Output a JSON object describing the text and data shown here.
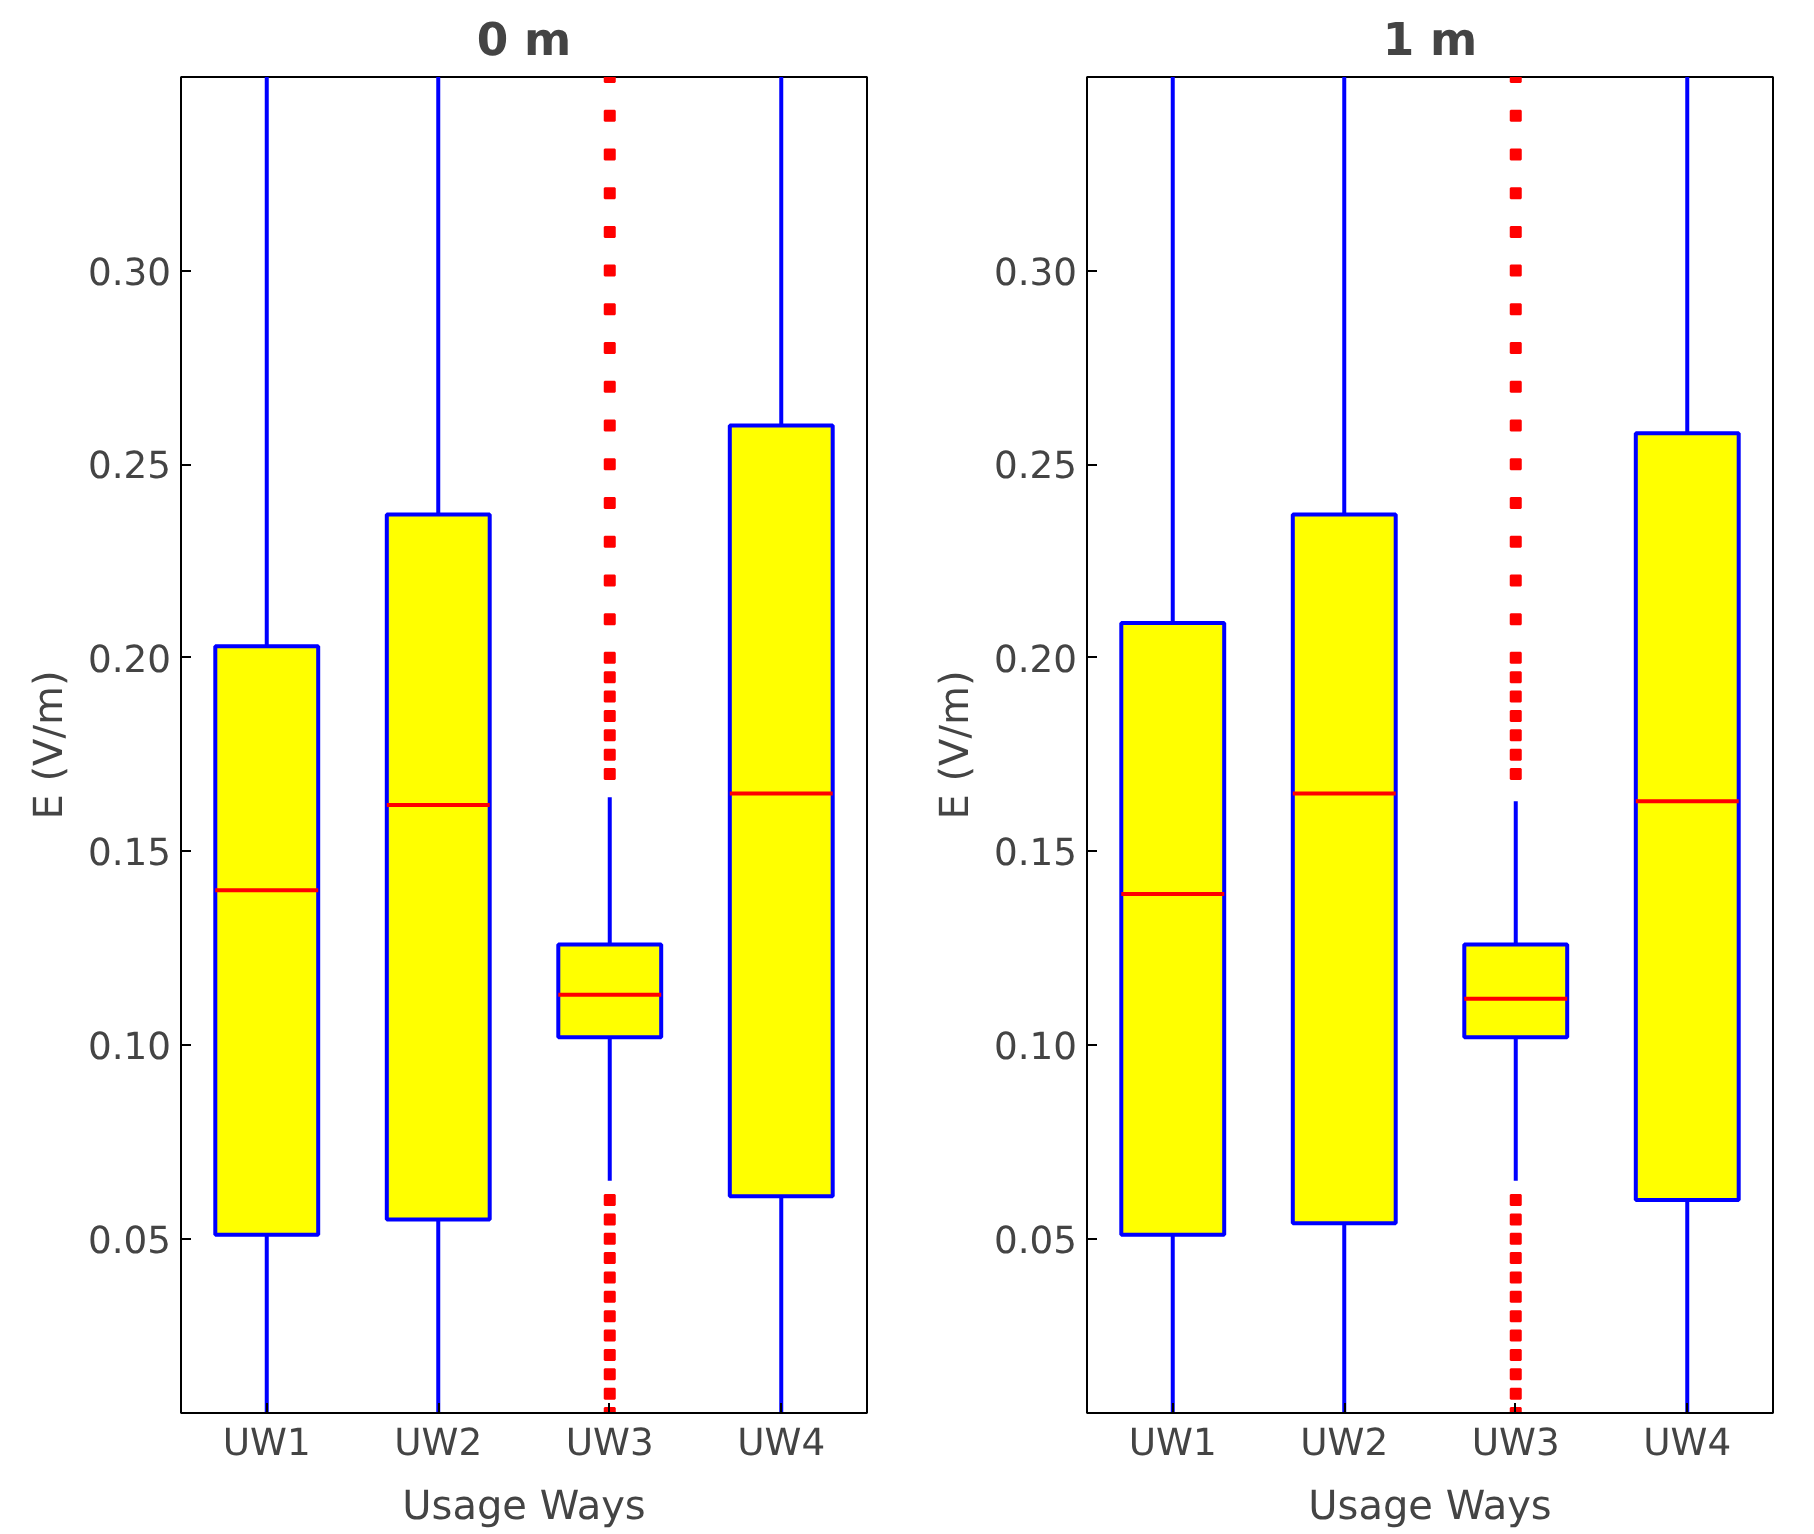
{
  "chart_data": [
    {
      "type": "box",
      "title": "0 m",
      "xlabel": "Usage Ways",
      "ylabel": "E (V/m)",
      "categories": [
        "UW1",
        "UW2",
        "UW3",
        "UW4"
      ],
      "ylim": [
        0.005,
        0.35
      ],
      "yticks": [
        {
          "value": 0.05,
          "label": "0.05"
        },
        {
          "value": 0.1,
          "label": "0.10"
        },
        {
          "value": 0.15,
          "label": "0.15"
        },
        {
          "value": 0.2,
          "label": "0.20"
        },
        {
          "value": 0.25,
          "label": "0.25"
        },
        {
          "value": 0.3,
          "label": "0.30"
        }
      ],
      "grid": false,
      "marker": "square",
      "series": [
        {
          "color": "#ffff00",
          "boxes": [
            {
              "low": 0.005,
              "q1": 0.051,
              "median": 0.14,
              "q3": 0.203,
              "high": 0.35
            },
            {
              "low": 0.005,
              "q1": 0.055,
              "median": 0.162,
              "q3": 0.237,
              "high": 0.35
            },
            {
              "low": 0.065,
              "q1": 0.102,
              "median": 0.113,
              "q3": 0.126,
              "high": 0.164,
              "outliers": [
                0.005,
                0.01,
                0.015,
                0.02,
                0.025,
                0.03,
                0.035,
                0.04,
                0.045,
                0.05,
                0.055,
                0.06,
                0.17,
                0.175,
                0.18,
                0.185,
                0.19,
                0.195,
                0.2,
                0.21,
                0.22,
                0.23,
                0.24,
                0.25,
                0.26,
                0.27,
                0.28,
                0.29,
                0.3,
                0.31,
                0.32,
                0.33,
                0.34,
                0.35
              ]
            },
            {
              "low": 0.005,
              "q1": 0.061,
              "median": 0.165,
              "q3": 0.26,
              "high": 0.35
            }
          ]
        }
      ]
    },
    {
      "type": "box",
      "title": "1 m",
      "xlabel": "Usage Ways",
      "ylabel": "E (V/m)",
      "categories": [
        "UW1",
        "UW2",
        "UW3",
        "UW4"
      ],
      "ylim": [
        0.005,
        0.35
      ],
      "yticks": [
        {
          "value": 0.05,
          "label": "0.05"
        },
        {
          "value": 0.1,
          "label": "0.10"
        },
        {
          "value": 0.15,
          "label": "0.15"
        },
        {
          "value": 0.2,
          "label": "0.20"
        },
        {
          "value": 0.25,
          "label": "0.25"
        },
        {
          "value": 0.3,
          "label": "0.30"
        }
      ],
      "grid": false,
      "marker": "square",
      "series": [
        {
          "color": "#ffff00",
          "boxes": [
            {
              "low": 0.005,
              "q1": 0.051,
              "median": 0.139,
              "q3": 0.209,
              "high": 0.35
            },
            {
              "low": 0.005,
              "q1": 0.054,
              "median": 0.165,
              "q3": 0.237,
              "high": 0.35
            },
            {
              "low": 0.065,
              "q1": 0.102,
              "median": 0.112,
              "q3": 0.126,
              "high": 0.163,
              "outliers": [
                0.005,
                0.01,
                0.015,
                0.02,
                0.025,
                0.03,
                0.035,
                0.04,
                0.045,
                0.05,
                0.055,
                0.06,
                0.17,
                0.175,
                0.18,
                0.185,
                0.19,
                0.195,
                0.2,
                0.21,
                0.22,
                0.23,
                0.24,
                0.25,
                0.26,
                0.27,
                0.28,
                0.29,
                0.3,
                0.31,
                0.32,
                0.33,
                0.34,
                0.35
              ]
            },
            {
              "low": 0.005,
              "q1": 0.06,
              "median": 0.163,
              "q3": 0.258,
              "high": 0.35
            }
          ]
        }
      ]
    }
  ]
}
